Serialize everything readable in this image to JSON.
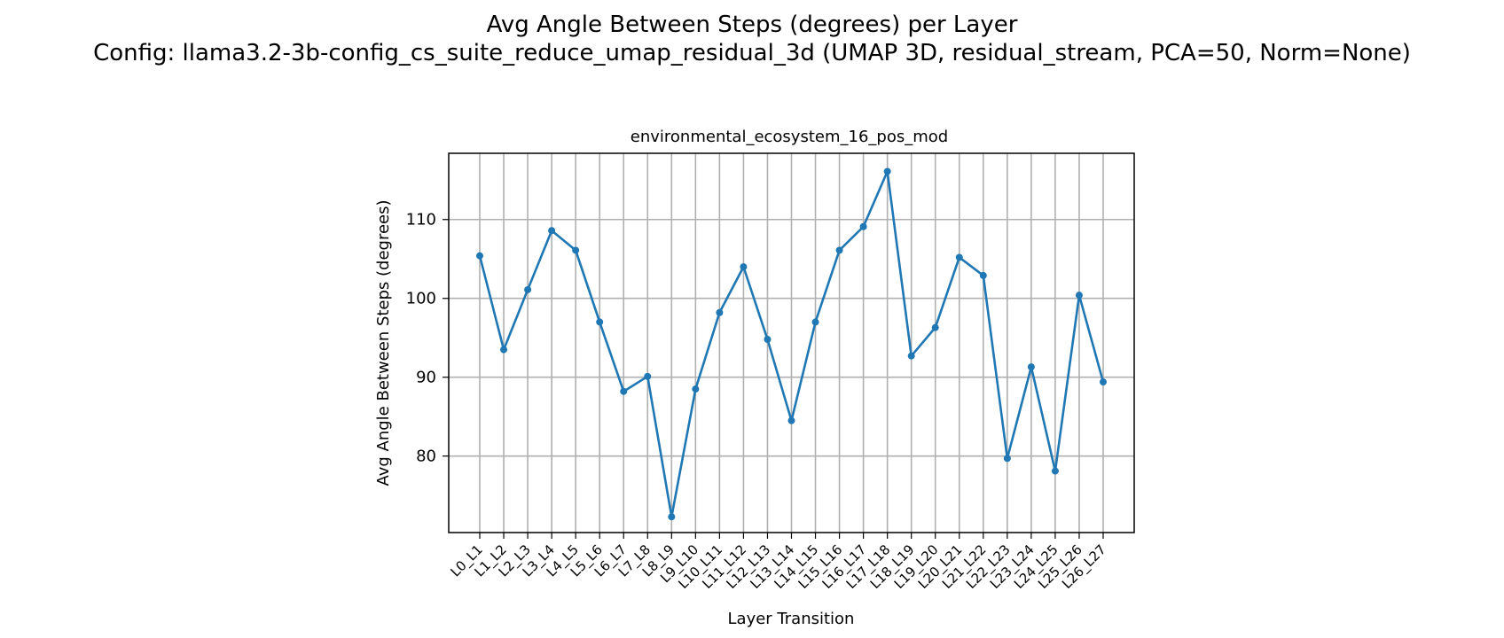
{
  "figure": {
    "suptitle_line1": "Avg Angle Between Steps (degrees) per Layer",
    "suptitle_line2": "Config: llama3.2-3b-config_cs_suite_reduce_umap_residual_3d (UMAP 3D, residual_stream, PCA=50, Norm=None)"
  },
  "chart_data": {
    "type": "line",
    "title": "environmental_ecosystem_16_pos_mod",
    "xlabel": "Layer Transition",
    "ylabel": "Avg Angle Between Steps (degrees)",
    "categories": [
      "L0_L1",
      "L1_L2",
      "L2_L3",
      "L3_L4",
      "L4_L5",
      "L5_L6",
      "L6_L7",
      "L7_L8",
      "L8_L9",
      "L9_L10",
      "L10_L11",
      "L11_L12",
      "L12_L13",
      "L13_L14",
      "L14_L15",
      "L15_L16",
      "L16_L17",
      "L17_L18",
      "L18_L19",
      "L19_L20",
      "L20_L21",
      "L21_L22",
      "L22_L23",
      "L23_L24",
      "L24_L25",
      "L25_L26",
      "L26_L27"
    ],
    "series": [
      {
        "values": [
          105.4,
          93.5,
          101.1,
          108.6,
          106.1,
          97.0,
          88.2,
          90.1,
          72.3,
          88.5,
          98.2,
          104.0,
          94.8,
          84.5,
          97.0,
          106.1,
          109.1,
          116.1,
          92.7,
          96.3,
          105.2,
          102.9,
          79.7,
          91.3,
          78.1,
          100.4,
          89.4
        ]
      }
    ],
    "ylim": [
      70.3,
      118.4
    ],
    "yticks": [
      80,
      90,
      100,
      110
    ],
    "grid": true,
    "marker": "circle",
    "line_color": "#1f77b4"
  }
}
